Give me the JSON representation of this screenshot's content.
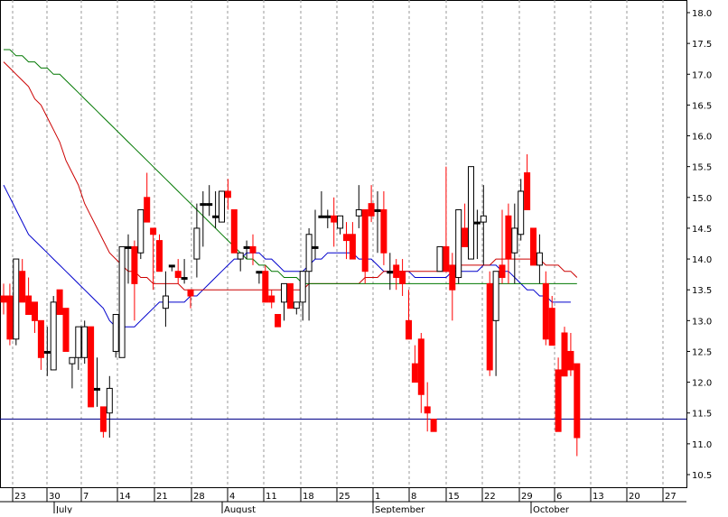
{
  "chart_data": {
    "type": "candlestick",
    "grid": true,
    "ylim": [
      10.3,
      18.1
    ],
    "y_ticks": [
      "10.5",
      "11.0",
      "11.5",
      "12.0",
      "12.5",
      "13.0",
      "13.5",
      "14.0",
      "14.5",
      "15.0",
      "15.5",
      "16.0",
      "16.5",
      "17.0",
      "17.5",
      "18.0"
    ],
    "x_day_ticks": [
      "23",
      "30",
      "7",
      "14",
      "21",
      "28",
      "4",
      "11",
      "18",
      "25",
      "1",
      "8",
      "15",
      "22",
      "29",
      "6",
      "13",
      "20",
      "27"
    ],
    "x_month_labels": [
      "July",
      "August",
      "September",
      "October"
    ],
    "reference_line": 11.4,
    "colors": {
      "up": "#ffffff",
      "down": "#ff0000",
      "neutral": "#000000",
      "ma_short": "#0000cc",
      "ma_mid": "#cc0000",
      "ma_long": "#007700",
      "ref": "#000088"
    },
    "candles": [
      [
        13.4,
        13.6,
        13.1,
        13.3
      ],
      [
        13.4,
        13.6,
        12.6,
        12.7
      ],
      [
        12.7,
        14.0,
        12.6,
        14.0
      ],
      [
        13.8,
        14.0,
        13.3,
        13.3
      ],
      [
        13.4,
        13.7,
        13.1,
        13.1
      ],
      [
        13.3,
        13.3,
        12.8,
        13.0
      ],
      [
        13.0,
        13.0,
        12.2,
        12.4
      ],
      [
        12.5,
        12.9,
        12.1,
        12.5
      ],
      [
        12.2,
        13.4,
        12.2,
        13.3
      ],
      [
        13.5,
        13.5,
        13.1,
        13.1
      ],
      [
        13.2,
        13.2,
        12.5,
        12.5
      ],
      [
        12.3,
        12.4,
        11.9,
        12.4
      ],
      [
        12.4,
        12.9,
        12.2,
        12.9
      ],
      [
        12.4,
        13.0,
        12.3,
        12.9
      ],
      [
        12.9,
        12.9,
        11.6,
        11.6
      ],
      [
        11.9,
        12.4,
        11.6,
        11.9
      ],
      [
        11.6,
        11.6,
        11.1,
        11.2
      ],
      [
        11.5,
        12.1,
        11.1,
        11.9
      ],
      [
        12.5,
        13.1,
        12.4,
        13.1
      ],
      [
        12.4,
        14.2,
        12.4,
        14.2
      ],
      [
        14.2,
        14.4,
        13.6,
        14.2
      ],
      [
        14.2,
        14.3,
        13.0,
        13.6
      ],
      [
        14.1,
        14.8,
        14.0,
        14.8
      ],
      [
        15.0,
        15.4,
        14.6,
        14.6
      ],
      [
        14.5,
        14.5,
        13.5,
        14.4
      ],
      [
        14.3,
        14.4,
        13.8,
        13.8
      ],
      [
        13.2,
        13.8,
        12.9,
        13.4
      ],
      [
        13.9,
        13.9,
        13.8,
        13.9
      ],
      [
        13.8,
        14.0,
        13.6,
        13.7
      ],
      [
        13.7,
        14.0,
        13.6,
        13.7
      ],
      [
        13.5,
        13.5,
        13.2,
        13.4
      ],
      [
        14.0,
        14.9,
        13.7,
        14.5
      ],
      [
        14.9,
        15.1,
        14.2,
        14.9
      ],
      [
        14.9,
        15.2,
        14.7,
        14.9
      ],
      [
        14.7,
        15.1,
        14.5,
        14.7
      ],
      [
        14.6,
        15.1,
        14.6,
        15.1
      ],
      [
        15.1,
        15.3,
        14.8,
        15.0
      ],
      [
        14.8,
        14.8,
        14.1,
        14.1
      ],
      [
        14.0,
        14.1,
        13.8,
        14.1
      ],
      [
        14.2,
        14.3,
        14.0,
        14.2
      ],
      [
        14.2,
        14.4,
        13.9,
        14.1
      ],
      [
        13.8,
        13.8,
        13.6,
        13.8
      ],
      [
        13.8,
        13.9,
        13.3,
        13.3
      ],
      [
        13.4,
        13.5,
        13.2,
        13.3
      ],
      [
        13.1,
        13.1,
        12.9,
        12.9
      ],
      [
        13.3,
        13.6,
        13.0,
        13.6
      ],
      [
        13.6,
        13.6,
        13.2,
        13.2
      ],
      [
        13.2,
        13.3,
        13.1,
        13.3
      ],
      [
        13.3,
        13.8,
        13.0,
        13.8
      ],
      [
        13.8,
        14.5,
        13.0,
        14.4
      ],
      [
        14.2,
        14.8,
        14.0,
        14.2
      ],
      [
        14.7,
        15.1,
        14.7,
        14.7
      ],
      [
        14.7,
        14.8,
        14.5,
        14.7
      ],
      [
        14.7,
        15.0,
        14.2,
        14.6
      ],
      [
        14.5,
        14.7,
        14.4,
        14.7
      ],
      [
        14.4,
        14.6,
        14.0,
        14.3
      ],
      [
        14.4,
        14.6,
        14.0,
        14.0
      ],
      [
        14.7,
        15.2,
        14.5,
        14.8
      ],
      [
        14.8,
        14.8,
        13.6,
        13.8
      ],
      [
        14.9,
        15.2,
        14.6,
        14.7
      ],
      [
        14.8,
        15.1,
        14.1,
        14.8
      ],
      [
        14.8,
        15.1,
        13.9,
        14.1
      ],
      [
        13.8,
        14.1,
        13.5,
        13.8
      ],
      [
        13.9,
        14.0,
        13.5,
        13.7
      ],
      [
        13.8,
        14.0,
        13.4,
        13.6
      ],
      [
        13.0,
        13.5,
        12.7,
        12.7
      ],
      [
        12.3,
        12.6,
        12.0,
        12.0
      ],
      [
        12.7,
        12.8,
        11.5,
        11.8
      ],
      [
        11.6,
        12.0,
        11.2,
        11.5
      ],
      [
        11.4,
        11.4,
        11.2,
        11.2
      ],
      [
        13.8,
        14.2,
        13.8,
        14.2
      ],
      [
        14.2,
        15.5,
        13.8,
        13.8
      ],
      [
        13.9,
        14.1,
        13.0,
        13.5
      ],
      [
        13.7,
        14.8,
        13.6,
        14.8
      ],
      [
        14.5,
        14.9,
        14.2,
        14.2
      ],
      [
        14.0,
        15.5,
        14.0,
        15.5
      ],
      [
        14.6,
        14.8,
        14.0,
        14.6
      ],
      [
        14.6,
        15.2,
        13.9,
        14.7
      ],
      [
        13.6,
        13.8,
        12.1,
        12.2
      ],
      [
        13.0,
        13.8,
        12.1,
        13.8
      ],
      [
        13.9,
        14.8,
        13.6,
        13.7
      ],
      [
        14.7,
        14.9,
        13.6,
        14.0
      ],
      [
        14.1,
        14.9,
        13.6,
        14.5
      ],
      [
        14.4,
        15.3,
        14.3,
        15.1
      ],
      [
        15.4,
        15.7,
        14.8,
        14.8
      ],
      [
        14.5,
        14.5,
        13.9,
        13.9
      ],
      [
        13.9,
        14.4,
        13.6,
        14.1
      ],
      [
        13.6,
        13.8,
        12.6,
        12.7
      ],
      [
        13.2,
        13.4,
        12.6,
        12.6
      ],
      [
        12.2,
        12.4,
        11.2,
        11.2
      ],
      [
        12.8,
        12.9,
        12.1,
        12.1
      ],
      [
        12.5,
        12.8,
        12.1,
        12.2
      ],
      [
        12.3,
        12.3,
        10.8,
        11.1
      ]
    ],
    "series": [
      {
        "values": [
          15.2,
          15.0,
          14.8,
          14.6,
          14.4,
          14.3,
          14.2,
          14.1,
          14.0,
          13.9,
          13.8,
          13.7,
          13.6,
          13.5,
          13.4,
          13.3,
          13.2,
          13.0,
          12.9,
          12.9,
          12.9,
          12.9,
          13.0,
          13.1,
          13.2,
          13.3,
          13.3,
          13.3,
          13.3,
          13.3,
          13.4,
          13.4,
          13.5,
          13.6,
          13.7,
          13.8,
          13.9,
          14.0,
          14.0,
          14.1,
          14.1,
          14.1,
          14.0,
          14.0,
          13.9,
          13.8,
          13.8,
          13.8,
          13.8,
          13.9,
          14.0,
          14.0,
          14.1,
          14.1,
          14.1,
          14.1,
          14.1,
          14.0,
          14.0,
          14.0,
          13.9,
          13.8,
          13.8,
          13.8,
          13.8,
          13.8,
          13.7,
          13.7,
          13.7,
          13.7,
          13.7,
          13.7,
          13.8,
          13.8,
          13.8,
          13.8,
          13.8,
          13.9,
          13.9,
          13.9,
          13.8,
          13.8,
          13.7,
          13.6,
          13.5,
          13.5,
          13.4,
          13.4,
          13.3,
          13.3,
          13.3,
          13.3
        ]
      },
      {
        "values": [
          17.2,
          17.1,
          17.0,
          16.9,
          16.8,
          16.6,
          16.5,
          16.3,
          16.1,
          15.9,
          15.6,
          15.4,
          15.2,
          14.9,
          14.7,
          14.5,
          14.3,
          14.1,
          14.0,
          13.9,
          13.8,
          13.8,
          13.7,
          13.7,
          13.6,
          13.6,
          13.6,
          13.6,
          13.6,
          13.5,
          13.5,
          13.5,
          13.5,
          13.5,
          13.5,
          13.5,
          13.5,
          13.5,
          13.5,
          13.5,
          13.5,
          13.5,
          13.5,
          13.5,
          13.5,
          13.5,
          13.5,
          13.5,
          13.5,
          13.6,
          13.6,
          13.6,
          13.6,
          13.6,
          13.6,
          13.6,
          13.6,
          13.6,
          13.7,
          13.7,
          13.7,
          13.8,
          13.8,
          13.8,
          13.8,
          13.8,
          13.8,
          13.8,
          13.8,
          13.8,
          13.8,
          13.8,
          13.8,
          13.9,
          13.9,
          13.9,
          13.9,
          13.9,
          13.9,
          14.0,
          14.0,
          14.0,
          14.0,
          14.0,
          14.0,
          14.0,
          14.0,
          13.9,
          13.9,
          13.9,
          13.8,
          13.8,
          13.7
        ]
      },
      {
        "values": [
          17.4,
          17.4,
          17.3,
          17.3,
          17.2,
          17.2,
          17.1,
          17.1,
          17.0,
          17.0,
          16.9,
          16.8,
          16.7,
          16.6,
          16.5,
          16.4,
          16.3,
          16.2,
          16.1,
          16.0,
          15.9,
          15.8,
          15.7,
          15.6,
          15.5,
          15.4,
          15.3,
          15.2,
          15.1,
          15.0,
          14.9,
          14.8,
          14.7,
          14.6,
          14.5,
          14.4,
          14.3,
          14.2,
          14.1,
          14.0,
          14.0,
          13.9,
          13.9,
          13.8,
          13.8,
          13.7,
          13.7,
          13.7,
          13.6,
          13.6,
          13.6,
          13.6,
          13.6,
          13.6,
          13.6,
          13.6,
          13.6,
          13.6,
          13.6,
          13.6,
          13.6,
          13.6,
          13.6,
          13.6,
          13.6,
          13.6,
          13.6,
          13.6,
          13.6,
          13.6,
          13.6,
          13.6,
          13.6,
          13.6,
          13.6,
          13.6,
          13.6,
          13.6,
          13.6,
          13.6,
          13.6,
          13.6,
          13.6,
          13.6,
          13.6,
          13.6,
          13.6,
          13.6,
          13.6,
          13.6,
          13.6,
          13.6,
          13.6
        ]
      }
    ]
  }
}
